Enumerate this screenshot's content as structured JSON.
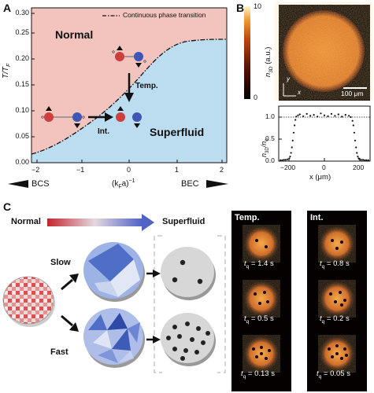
{
  "panels": {
    "a": {
      "letter": "A",
      "ylabel": "T/T",
      "ylabel_sub": "F",
      "legend": "Continuous phase transition",
      "region_normal": "Normal",
      "region_superfluid": "Superfluid",
      "arrow_temp": "Temp.",
      "arrow_int": "Int.",
      "xlabel_main": "(k",
      "xlabel_sub": "F",
      "xlabel_tail": "a)",
      "xlabel_exp": "−1",
      "bcs": "BCS",
      "bec": "BEC",
      "xticks": [
        "−2",
        "−1",
        "0",
        "1",
        "2"
      ],
      "yticks": [
        "0.00",
        "0.05",
        "0.10",
        "0.15",
        "0.20",
        "0.25",
        "0.30"
      ],
      "colors": {
        "normal": "#f2c4bd",
        "superfluid": "#bcdcf0",
        "red_atom": "#cc3f3f",
        "blue_atom": "#3f56b6"
      }
    },
    "b": {
      "letter": "B",
      "colorbar_max": "10",
      "colorbar_min": "0",
      "colorbar_label": "n",
      "colorbar_label_sub": "3D",
      "colorbar_unit": "(a.u.)",
      "axis_y": "y",
      "axis_x": "x",
      "scalebar": "100 μm",
      "profile_ylabel": "n",
      "profile_ylabel_sub": "3D",
      "profile_ylabel_tail": "/n",
      "profile_ylabel_sub2": "0",
      "profile_xlabel": "x (μm)",
      "yticks": [
        "0.0",
        "0.5",
        "1.0"
      ],
      "xticks": [
        "−200",
        "0",
        "200"
      ]
    },
    "c": {
      "letter": "C",
      "normal": "Normal",
      "superfluid": "Superfluid",
      "slow": "Slow",
      "fast": "Fast",
      "col_temp": "Temp.",
      "col_int": "Int.",
      "temp_times": [
        "= 1.4 s",
        "= 0.5 s",
        "= 0.13 s"
      ],
      "int_times": [
        "= 0.8 s",
        "= 0.2 s",
        "= 0.05 s"
      ],
      "t_symbol": "t",
      "t_sub": "q"
    }
  },
  "chart_data": {
    "type": "scatter",
    "title": "",
    "xlabel": "x (μm)",
    "ylabel": "n3D/n0",
    "xlim": [
      -260,
      260
    ],
    "ylim": [
      0,
      1.2
    ],
    "x": [
      -250,
      -240,
      -230,
      -220,
      -210,
      -200,
      -195,
      -190,
      -185,
      -180,
      -175,
      -170,
      -165,
      -160,
      -150,
      -140,
      -120,
      -100,
      -80,
      -60,
      -40,
      -20,
      0,
      20,
      40,
      60,
      80,
      100,
      120,
      140,
      150,
      160,
      165,
      170,
      175,
      180,
      185,
      190,
      195,
      200,
      210,
      220,
      230,
      240,
      250
    ],
    "y": [
      0.02,
      0.02,
      0.03,
      0.03,
      0.04,
      0.06,
      0.1,
      0.18,
      0.3,
      0.45,
      0.62,
      0.78,
      0.9,
      0.97,
      1.0,
      1.02,
      0.98,
      1.03,
      0.99,
      1.01,
      0.97,
      1.04,
      1.0,
      0.98,
      1.03,
      0.99,
      1.02,
      0.97,
      1.01,
      0.99,
      0.96,
      0.88,
      0.78,
      0.62,
      0.45,
      0.3,
      0.18,
      0.1,
      0.06,
      0.04,
      0.03,
      0.03,
      0.02,
      0.02,
      0.02
    ]
  }
}
